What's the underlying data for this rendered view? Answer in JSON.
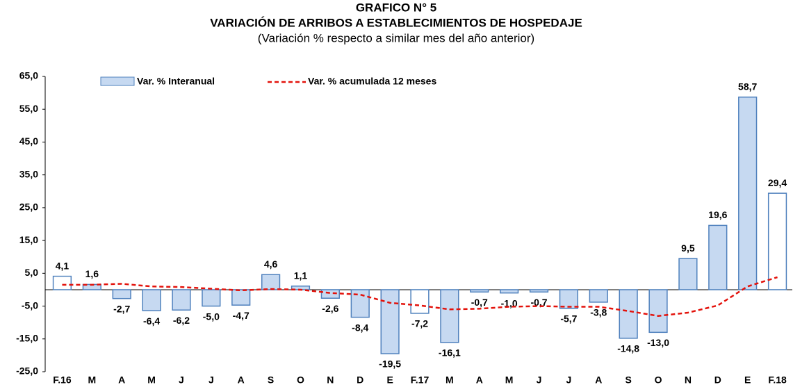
{
  "chart_data": {
    "type": "bar",
    "title": "GRAFICO N° 5",
    "subtitle": "VARIACIÓN DE ARRIBOS A ESTABLECIMIENTOS DE HOSPEDAJE",
    "note": "(Variación % respecto a similar mes del año anterior)",
    "categories": [
      "F.16",
      "M",
      "A",
      "M",
      "J",
      "J",
      "A",
      "S",
      "O",
      "N",
      "D",
      "E",
      "F.17",
      "M",
      "A",
      "M",
      "J",
      "J",
      "A",
      "S",
      "O",
      "N",
      "D",
      "E",
      "F.18"
    ],
    "series": [
      {
        "name": "Var. % Interanual",
        "type": "bar",
        "color": "#c6d9f1",
        "stroke": "#4f81bd",
        "bar_colors": [
          "#ffffff",
          "#c6d9f1",
          "#c6d9f1",
          "#c6d9f1",
          "#c6d9f1",
          "#c6d9f1",
          "#c6d9f1",
          "#c6d9f1",
          "#c6d9f1",
          "#c6d9f1",
          "#c6d9f1",
          "#c6d9f1",
          "#ffffff",
          "#c6d9f1",
          "#c6d9f1",
          "#c6d9f1",
          "#c6d9f1",
          "#c6d9f1",
          "#c6d9f1",
          "#c6d9f1",
          "#c6d9f1",
          "#c6d9f1",
          "#c6d9f1",
          "#c6d9f1",
          "#ffffff"
        ],
        "values": [
          4.1,
          1.6,
          -2.7,
          -6.4,
          -6.2,
          -5.0,
          -4.7,
          4.6,
          1.1,
          -2.6,
          -8.4,
          -19.5,
          -7.2,
          -16.1,
          -0.7,
          -1.0,
          -0.7,
          -5.7,
          -3.8,
          -14.8,
          -13.0,
          9.5,
          19.6,
          58.7,
          29.4
        ],
        "value_labels": [
          "4,1",
          "1,6",
          "-2,7",
          "-6,4",
          "-6,2",
          "-5,0",
          "-4,7",
          "4,6",
          "1,1",
          "-2,6",
          "-8,4",
          "-19,5",
          "-7,2",
          "-16,1",
          "-0,7",
          "-1,0",
          "-0,7",
          "-5,7",
          "-3,8",
          "-14,8",
          "-13,0",
          "9,5",
          "19,6",
          "58,7",
          "29,4"
        ]
      },
      {
        "name": "Var. % acumulada 12 meses",
        "type": "line",
        "color": "#e3120b",
        "dashed": true,
        "values": [
          1.5,
          1.5,
          1.8,
          1.0,
          0.8,
          0.3,
          -0.2,
          0.2,
          0.0,
          -1.0,
          -1.5,
          -4.0,
          -4.8,
          -6.0,
          -5.8,
          -5.2,
          -5.0,
          -5.2,
          -5.2,
          -6.5,
          -8.0,
          -7.0,
          -4.8,
          1.0,
          3.8
        ]
      }
    ],
    "ylim": [
      -25,
      65
    ],
    "yticks": [
      {
        "value": -25,
        "label": "-25,0"
      },
      {
        "value": -15,
        "label": "-15,0"
      },
      {
        "value": -5,
        "label": "-5,0"
      },
      {
        "value": 5,
        "label": "5,0"
      },
      {
        "value": 15,
        "label": "15,0"
      },
      {
        "value": 25,
        "label": "25,0"
      },
      {
        "value": 35,
        "label": "35,0"
      },
      {
        "value": 45,
        "label": "45,0"
      },
      {
        "value": 55,
        "label": "55,0"
      },
      {
        "value": 65,
        "label": "65,0"
      }
    ],
    "grid": false
  }
}
